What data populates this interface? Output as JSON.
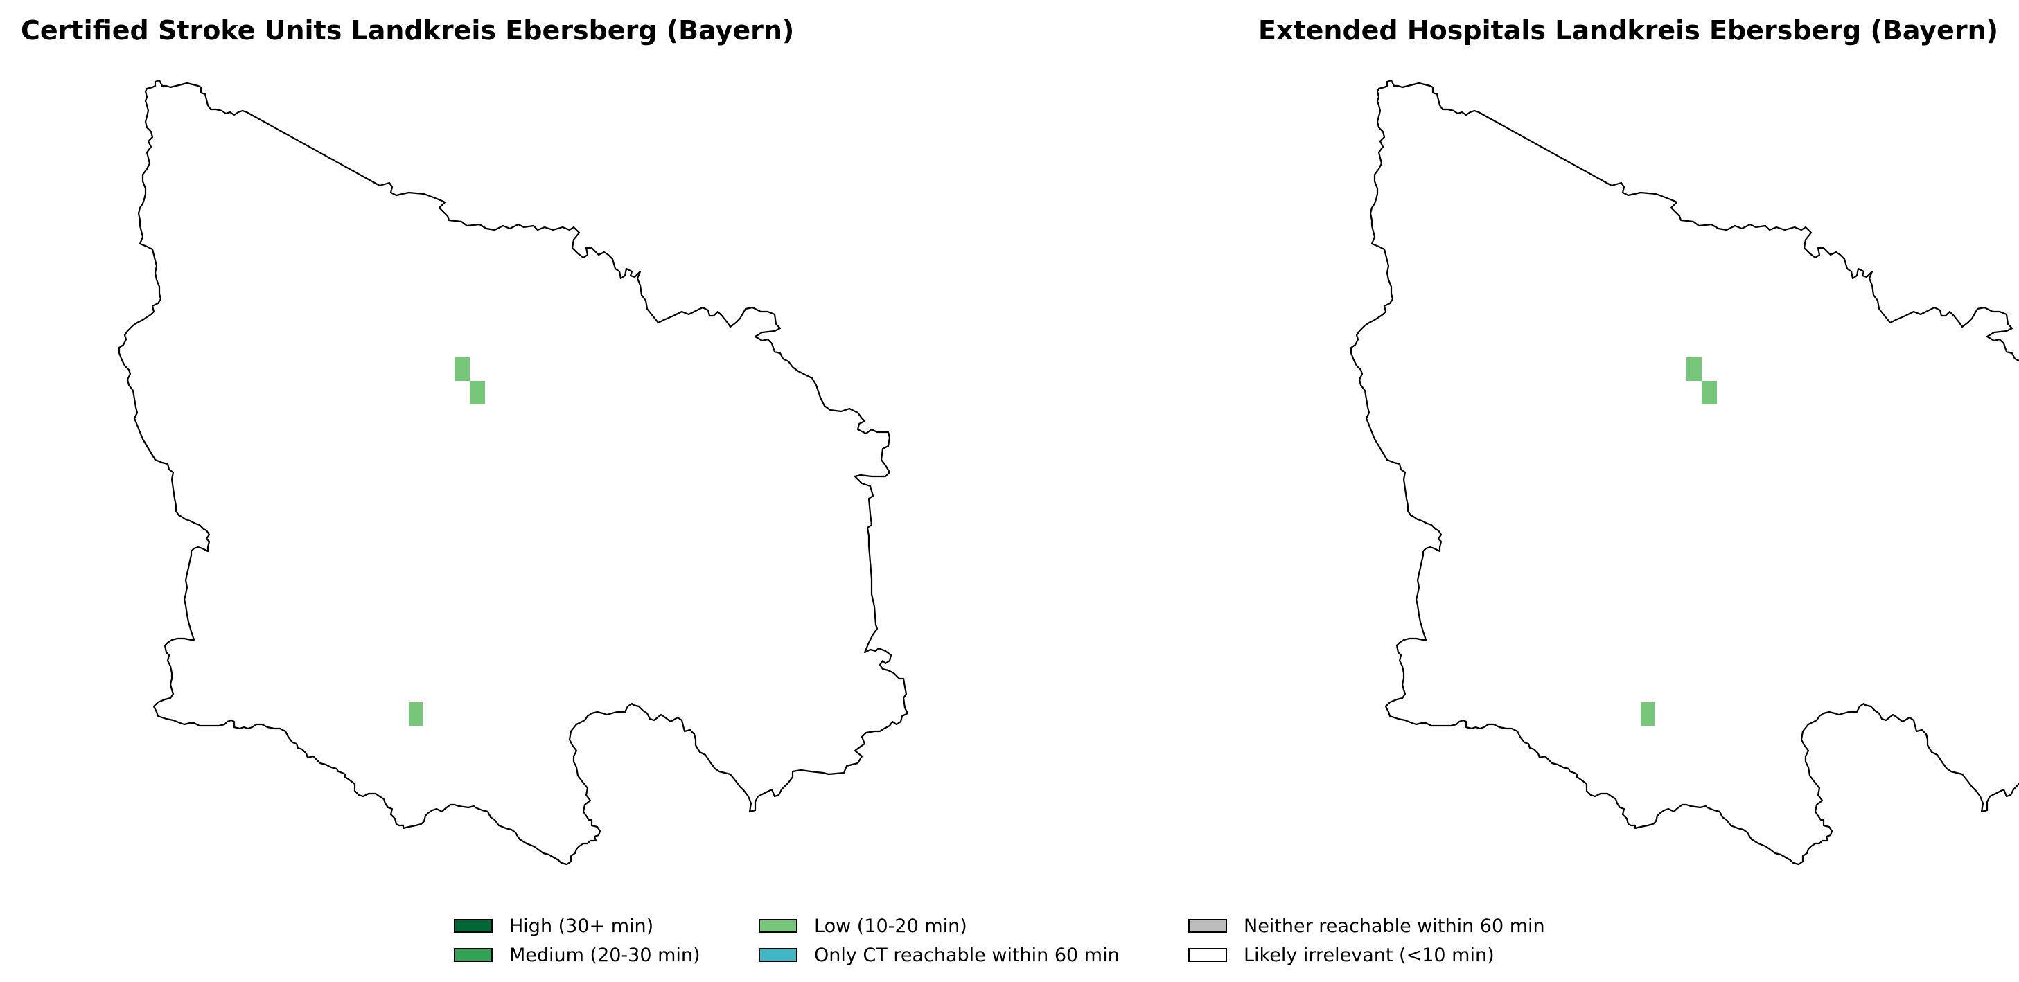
{
  "maps": [
    {
      "title": "Certified Stroke Units Landkreis Ebersberg (Bayern)",
      "cells": [
        {
          "category": "low"
        },
        {
          "category": "low"
        },
        {
          "category": "low"
        }
      ]
    },
    {
      "title": "Extended Hospitals Landkreis Ebersberg (Bayern)",
      "cells": [
        {
          "category": "low"
        },
        {
          "category": "low"
        },
        {
          "category": "low"
        }
      ]
    }
  ],
  "legend": {
    "items": [
      {
        "key": "high",
        "label": "High (30+ min)",
        "color": "#006837"
      },
      {
        "key": "medium",
        "label": "Medium (20-30 min)",
        "color": "#31a354"
      },
      {
        "key": "low",
        "label": "Low (10-20 min)",
        "color": "#78c679"
      },
      {
        "key": "ct_only",
        "label": "Only CT reachable within 60 min",
        "color": "#41b6c4"
      },
      {
        "key": "neither",
        "label": "Neither reachable within 60 min",
        "color": "#bdbdbd"
      },
      {
        "key": "irrelevant",
        "label": "Likely irrelevant (<10 min)",
        "color": "#ffffff"
      }
    ]
  },
  "colors": {
    "boundary": "#000000",
    "background": "#ffffff"
  }
}
